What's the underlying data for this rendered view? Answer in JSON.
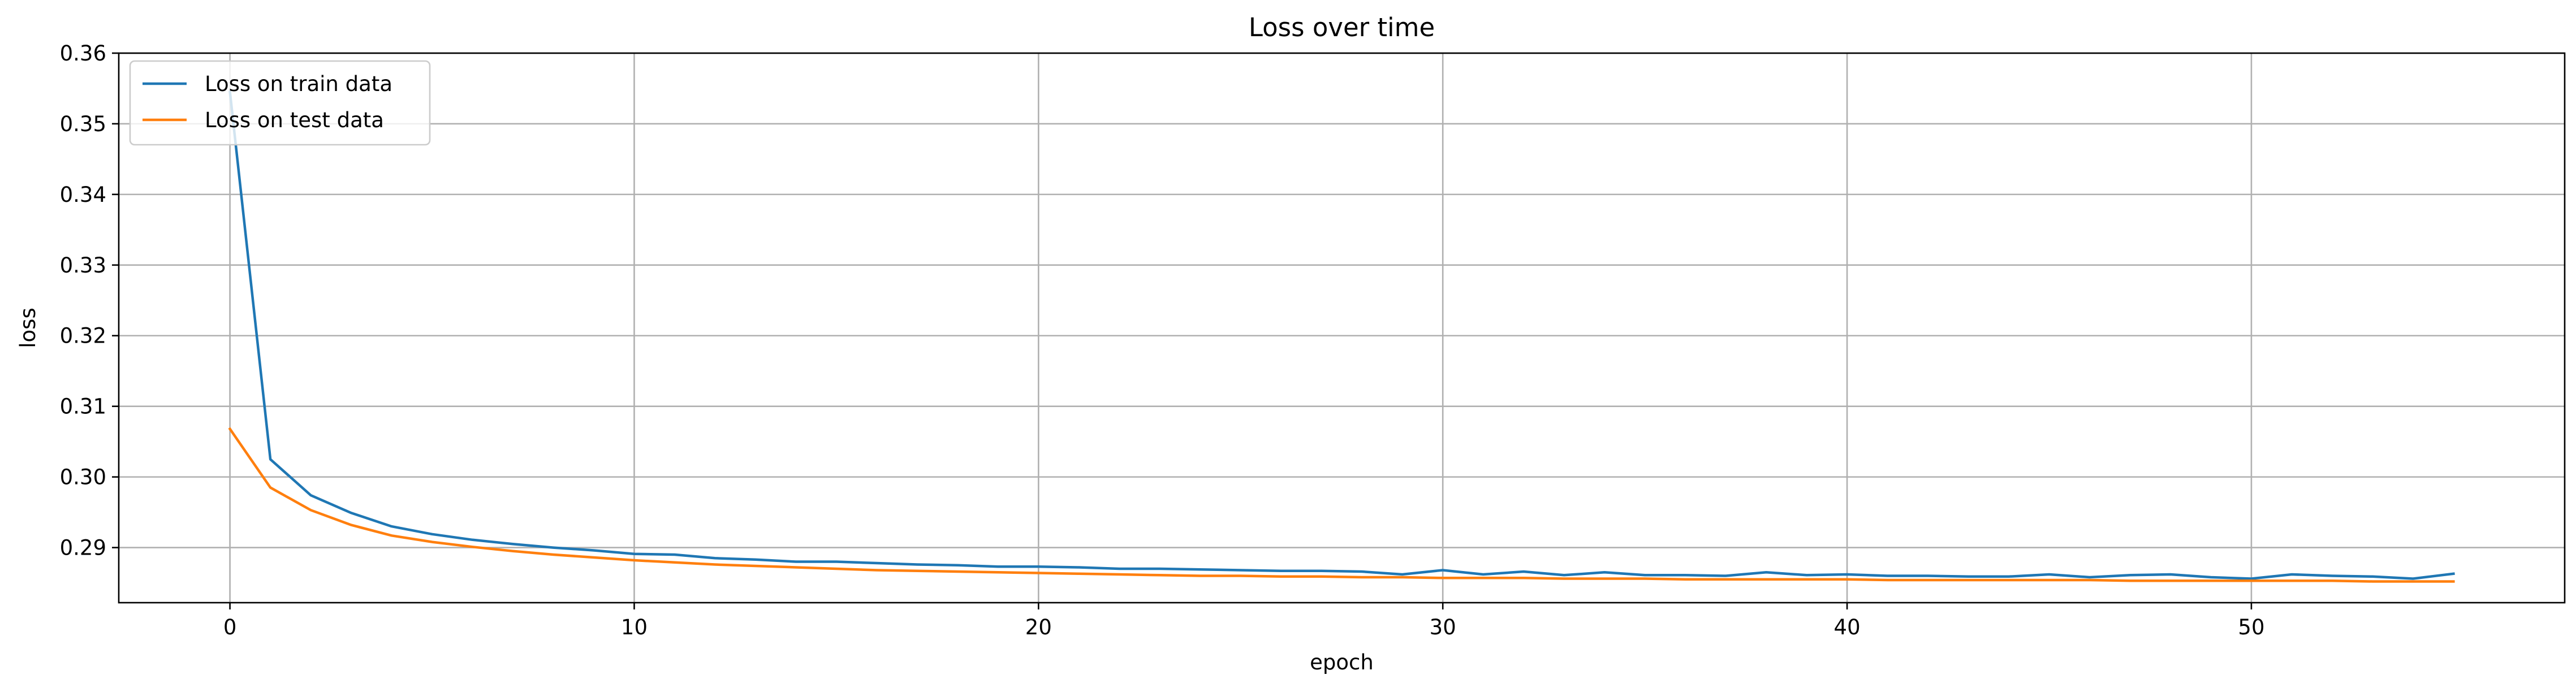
{
  "chart_data": {
    "type": "line",
    "title": "Loss over time",
    "xlabel": "epoch",
    "ylabel": "loss",
    "xlim": [
      -2.75,
      57.75
    ],
    "ylim": [
      0.2822,
      0.36
    ],
    "xticks": [
      "0",
      "10",
      "20",
      "30",
      "40",
      "50"
    ],
    "xtick_values": [
      0,
      10,
      20,
      30,
      40,
      50
    ],
    "yticks": [
      "0.29",
      "0.30",
      "0.31",
      "0.32",
      "0.33",
      "0.34",
      "0.35",
      "0.36"
    ],
    "ytick_values": [
      0.29,
      0.3,
      0.31,
      0.32,
      0.33,
      0.34,
      0.35,
      0.36
    ],
    "grid": true,
    "legend_position": "upper-left",
    "x": [
      0,
      1,
      2,
      3,
      4,
      5,
      6,
      7,
      8,
      9,
      10,
      11,
      12,
      13,
      14,
      15,
      16,
      17,
      18,
      19,
      20,
      21,
      22,
      23,
      24,
      25,
      26,
      27,
      28,
      29,
      30,
      31,
      32,
      33,
      34,
      35,
      36,
      37,
      38,
      39,
      40,
      41,
      42,
      43,
      44,
      45,
      46,
      47,
      48,
      49,
      50,
      51,
      52,
      53,
      54,
      55
    ],
    "series": [
      {
        "name": "Loss on train data",
        "color": "#1f77b4",
        "values": [
          0.3545,
          0.3025,
          0.2974,
          0.2949,
          0.293,
          0.2919,
          0.2911,
          0.2905,
          0.29,
          0.2896,
          0.2891,
          0.289,
          0.2885,
          0.2883,
          0.288,
          0.288,
          0.2878,
          0.2876,
          0.2875,
          0.2873,
          0.2873,
          0.2872,
          0.287,
          0.287,
          0.2869,
          0.2868,
          0.2867,
          0.2867,
          0.2866,
          0.2862,
          0.2868,
          0.2862,
          0.2866,
          0.2861,
          0.2865,
          0.2861,
          0.2861,
          0.286,
          0.2865,
          0.2861,
          0.2862,
          0.286,
          0.286,
          0.2859,
          0.2859,
          0.2862,
          0.2858,
          0.2861,
          0.2862,
          0.2858,
          0.2856,
          0.2862,
          0.286,
          0.2859,
          0.2856,
          0.2863
        ]
      },
      {
        "name": "Loss on test data",
        "color": "#ff7f0e",
        "values": [
          0.3068,
          0.2985,
          0.2953,
          0.2932,
          0.2917,
          0.2908,
          0.2901,
          0.2895,
          0.289,
          0.2886,
          0.2882,
          0.2879,
          0.2876,
          0.2874,
          0.2872,
          0.287,
          0.2868,
          0.2867,
          0.2866,
          0.2865,
          0.2864,
          0.2863,
          0.2862,
          0.2861,
          0.286,
          0.286,
          0.2859,
          0.2859,
          0.2858,
          0.2858,
          0.2857,
          0.2857,
          0.2857,
          0.2856,
          0.2856,
          0.2856,
          0.2855,
          0.2855,
          0.2855,
          0.2855,
          0.2855,
          0.2854,
          0.2854,
          0.2854,
          0.2854,
          0.2854,
          0.2854,
          0.2853,
          0.2853,
          0.2853,
          0.2853,
          0.2853,
          0.2853,
          0.2852,
          0.2852,
          0.2852
        ]
      }
    ]
  }
}
